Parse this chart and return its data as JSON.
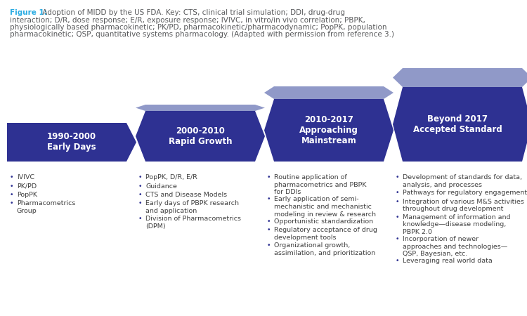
{
  "figure_label": "Figure 1:",
  "figure_label_color": "#29ABE2",
  "caption_rest": " Adoption of MIDD by the US FDA. Key: CTS, clinical trial simulation; DDI, drug-drug interaction; D/R, dose response; E/R, exposure response; IVIVC, in vitro/in vivo correlation; PBPK, physiologically based pharmacokinetic; PK/PD, pharmacokinetic/pharmacodynamic; PopPK, population pharmacokinetic; QSP, quantitative systems pharmacology. (Adapted with permission from reference 3.)",
  "caption_color": "#58595B",
  "caption_fontsize": 7.5,
  "background_color": "#FFFFFF",
  "header_dark_color": "#2E3192",
  "header_light_color": "#9099C8",
  "body_text_color": "#404040",
  "bullet_color": "#2E3192",
  "periods": [
    "1990-2000\nEarly Days",
    "2000-2010\nRapid Growth",
    "2010-2017\nApproaching\nMainstream",
    "Beyond 2017\nAccepted Standard"
  ],
  "bullet_items": [
    [
      "IVIVC",
      "PK/PD",
      "PopPK",
      "Pharmacometrics\nGroup"
    ],
    [
      "PopPK, D/R, E/R",
      "Guidance",
      "CTS and Disease Models",
      "Early days of PBPK research\nand application",
      "Division of Pharmacometrics\n(DPM)"
    ],
    [
      "Routine application of\npharmacometrics and PBPK\nfor DDIs",
      "Early application of semi-\nmechanistic and mechanistic\nmodeling in review & research",
      "Opportunistic standardization",
      "Regulatory acceptance of drug\ndevelopment tools",
      "Organizational growth,\nassimilation, and prioritization"
    ],
    [
      "Development of standards for data,\nanalysis, and processes",
      "Pathways for regulatory engagement",
      "Integration of various M&S activities\nthroughout drug development",
      "Management of information and\nknowledge—disease modeling,\nPBPK 2.0",
      "Incorporation of newer\napproaches and technologies—\nQSP, Bayesian, etc.",
      "Leveraging real world data"
    ]
  ]
}
